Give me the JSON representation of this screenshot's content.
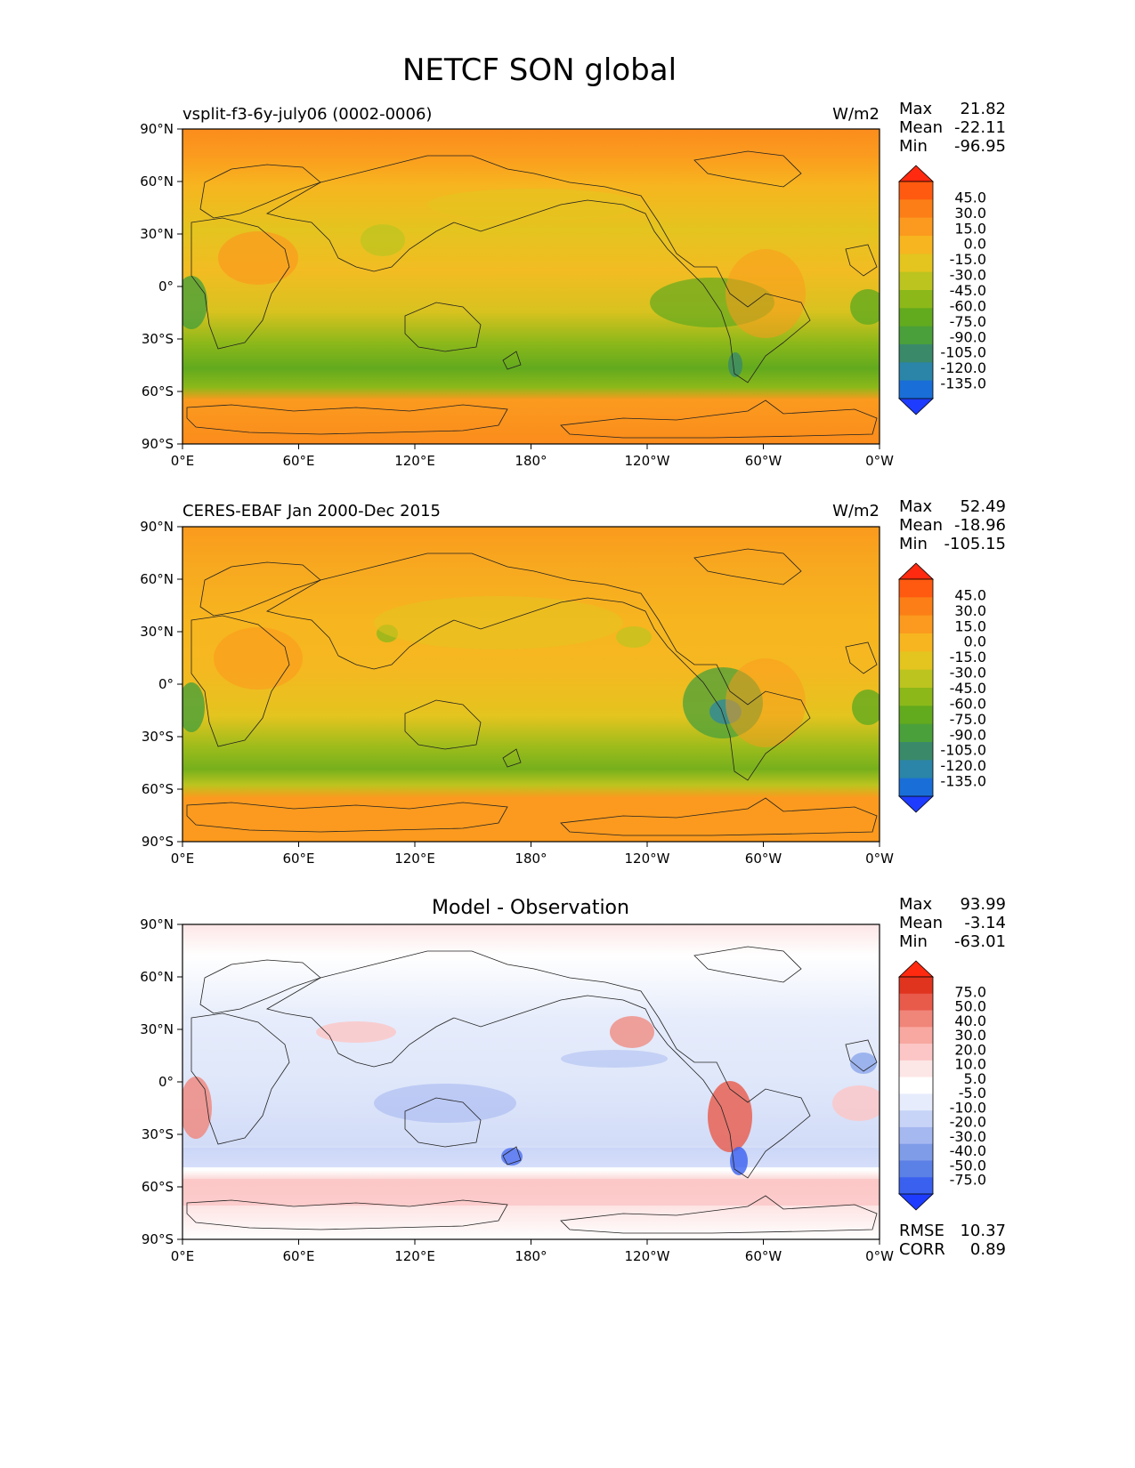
{
  "figure": {
    "title": "NETCF SON global"
  },
  "axes": {
    "lat_labels": [
      "90°N",
      "60°N",
      "30°N",
      "0°",
      "30°S",
      "60°S",
      "90°S"
    ],
    "lon_labels": [
      "0°E",
      "60°E",
      "120°E",
      "180°",
      "120°W",
      "60°W",
      "0°W"
    ]
  },
  "colors": {
    "test_ref_scale": [
      "#1e3cff",
      "#1a6ed7",
      "#2a85a8",
      "#3a8a6a",
      "#4aa03a",
      "#62aa1e",
      "#8cb81a",
      "#bcc41f",
      "#e4c41f",
      "#f7b51f",
      "#fb9a1e",
      "#fb7f16",
      "#ff5a0f",
      "#ff2a0f"
    ],
    "diff_scale": [
      "#1e3cff",
      "#3a60f0",
      "#5b80e6",
      "#7f9ce8",
      "#a6b8f0",
      "#c8d4f7",
      "#e6ecfb",
      "#ffffff",
      "#fde6e6",
      "#fcc6c6",
      "#f8a8a0",
      "#f0857a",
      "#e85a4a",
      "#e0341e",
      "#ff2a0f"
    ],
    "ocean_mid": "#f6b21f",
    "coast": "#222222"
  },
  "panels": [
    {
      "id": "test",
      "left_title": "vsplit-f3-6y-july06 (0002-0006)",
      "center_title": "",
      "units": "W/m2",
      "stats": [
        {
          "label": "Max",
          "value": "21.82"
        },
        {
          "label": "Mean",
          "value": "-22.11"
        },
        {
          "label": "Min",
          "value": "-96.95"
        }
      ],
      "colorbar_labels": [
        "45.0",
        "30.0",
        "15.0",
        "0.0",
        "-15.0",
        "-30.0",
        "-45.0",
        "-60.0",
        "-75.0",
        "-90.0",
        "-105.0",
        "-120.0",
        "-135.0"
      ],
      "extra_stats": []
    },
    {
      "id": "reference",
      "left_title": "CERES-EBAF Jan 2000-Dec 2015",
      "center_title": "",
      "units": "W/m2",
      "stats": [
        {
          "label": "Max",
          "value": "52.49"
        },
        {
          "label": "Mean",
          "value": "-18.96"
        },
        {
          "label": "Min",
          "value": "-105.15"
        }
      ],
      "colorbar_labels": [
        "45.0",
        "30.0",
        "15.0",
        "0.0",
        "-15.0",
        "-30.0",
        "-45.0",
        "-60.0",
        "-75.0",
        "-90.0",
        "-105.0",
        "-120.0",
        "-135.0"
      ],
      "extra_stats": []
    },
    {
      "id": "difference",
      "left_title": "",
      "center_title": "Model - Observation",
      "units": "",
      "stats": [
        {
          "label": "Max",
          "value": "93.99"
        },
        {
          "label": "Mean",
          "value": "-3.14"
        },
        {
          "label": "Min",
          "value": "-63.01"
        }
      ],
      "colorbar_labels": [
        "75.0",
        "50.0",
        "40.0",
        "30.0",
        "20.0",
        "10.0",
        "5.0",
        "-5.0",
        "-10.0",
        "-20.0",
        "-30.0",
        "-40.0",
        "-50.0",
        "-75.0"
      ],
      "extra_stats": [
        {
          "label": "RMSE",
          "value": "10.37"
        },
        {
          "label": "CORR",
          "value": "0.89"
        }
      ]
    }
  ]
}
